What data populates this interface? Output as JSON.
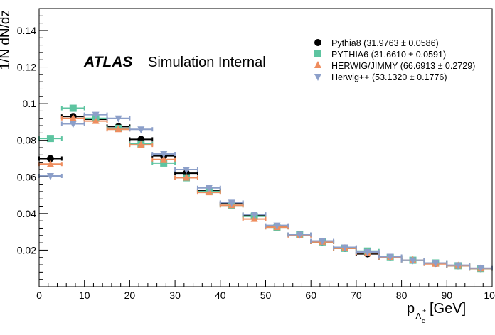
{
  "chart_data": {
    "type": "scatter",
    "xlabel": "p",
    "xlabel_sub": "Λ",
    "xlabel_subsub": "c",
    "xlabel_sup": "+",
    "xlabel_unit": "[GeV]",
    "ylabel": "1/N dN/dz",
    "xlim": [
      0,
      100
    ],
    "ylim": [
      0.0,
      0.152
    ],
    "xticks": [
      0,
      10,
      20,
      30,
      40,
      50,
      60,
      70,
      80,
      90,
      100
    ],
    "yticks": [
      0.02,
      0.04,
      0.06,
      0.08,
      0.1,
      0.12,
      0.14
    ],
    "grid": false,
    "legend_position": "top-right",
    "annotation": {
      "bold": "ATLAS",
      "text": "Simulation Internal"
    },
    "x_bin_centers": [
      2.5,
      7.5,
      12.5,
      17.5,
      22.5,
      27.5,
      32.5,
      37.5,
      42.5,
      47.5,
      52.5,
      57.5,
      62.5,
      67.5,
      72.5,
      77.5,
      82.5,
      87.5,
      92.5,
      97.5
    ],
    "x_bin_half_width": 2.5,
    "series": [
      {
        "name": "Pythia8 (31.9763 ± 0.0586)",
        "color": "#000000",
        "marker": "circle",
        "values": [
          0.07,
          0.093,
          0.0915,
          0.0875,
          0.0805,
          0.0715,
          0.062,
          0.0525,
          0.0455,
          0.039,
          0.033,
          0.0285,
          0.0245,
          0.021,
          0.018,
          0.016,
          0.0145,
          0.0128,
          0.0115,
          0.01
        ]
      },
      {
        "name": "PYTHIA6 (31.6610 ± 0.0591)",
        "color": "#5dc4a0",
        "marker": "square",
        "values": [
          0.081,
          0.0975,
          0.092,
          0.0865,
          0.078,
          0.0675,
          0.0595,
          0.052,
          0.0445,
          0.0385,
          0.0325,
          0.0285,
          0.0245,
          0.021,
          0.0195,
          0.016,
          0.0145,
          0.013,
          0.0115,
          0.01
        ]
      },
      {
        "name": "HERWIG/JIMMY (66.6913 ± 0.2729)",
        "color": "#ef8d5e",
        "marker": "triangle-up",
        "values": [
          0.067,
          0.092,
          0.0905,
          0.086,
          0.0775,
          0.0695,
          0.0595,
          0.0515,
          0.0445,
          0.037,
          0.0325,
          0.028,
          0.0245,
          0.021,
          0.0185,
          0.016,
          0.0145,
          0.0125,
          0.0115,
          0.01
        ]
      },
      {
        "name": "Herwig++ (53.1320 ± 0.1776)",
        "color": "#8c9fc9",
        "marker": "triangle-down",
        "values": [
          0.0605,
          0.089,
          0.094,
          0.092,
          0.086,
          0.0725,
          0.064,
          0.054,
          0.046,
          0.0395,
          0.0335,
          0.0285,
          0.025,
          0.0215,
          0.019,
          0.0165,
          0.0145,
          0.013,
          0.0118,
          0.0102
        ]
      }
    ]
  }
}
